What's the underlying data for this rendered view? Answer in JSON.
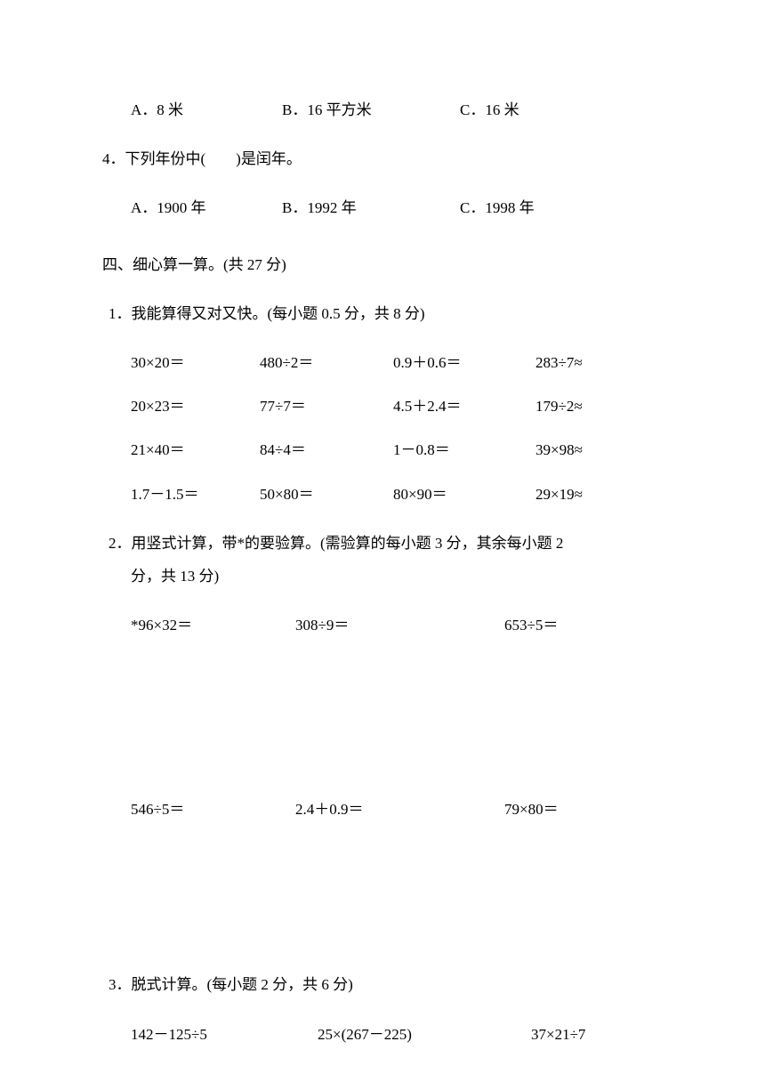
{
  "q3_options": {
    "a": "A．8 米",
    "b": "B．16 平方米",
    "c": "C．16 米"
  },
  "q4": {
    "stem": "4．下列年份中(　　)是闰年。",
    "a": "A．1900 年",
    "b": "B．1992 年",
    "c": "C．1998 年"
  },
  "section4": {
    "header": "四、细心算一算。(共 27 分)",
    "q1": {
      "stem": "1．我能算得又对又快。(每小题 0.5 分，共 8 分)",
      "rows": [
        [
          "30×20＝",
          "480÷2＝",
          "0.9＋0.6＝",
          "283÷7≈"
        ],
        [
          "20×23＝",
          "77÷7＝",
          "4.5＋2.4＝",
          "179÷2≈"
        ],
        [
          "21×40＝",
          "84÷4＝",
          "1－0.8＝",
          "39×98≈"
        ],
        [
          "1.7－1.5＝",
          "50×80＝",
          "80×90＝",
          "29×19≈"
        ]
      ]
    },
    "q2": {
      "stem_line1": "2．用竖式计算，带*的要验算。(需验算的每小题 3 分，其余每小题 2",
      "stem_line2": "分，共 13 分)",
      "rows": [
        [
          "*96×32＝",
          "308÷9＝",
          "653÷5＝"
        ],
        [
          "546÷5＝",
          "2.4＋0.9＝",
          "79×80＝"
        ]
      ]
    },
    "q3": {
      "stem": "3．脱式计算。(每小题 2 分，共 6 分)",
      "items": [
        "142－125÷5",
        "25×(267－225)",
        "37×21÷7"
      ]
    }
  },
  "colors": {
    "background": "#ffffff",
    "text": "#000000"
  },
  "font": {
    "family": "SimSun",
    "size_pt": 13
  }
}
